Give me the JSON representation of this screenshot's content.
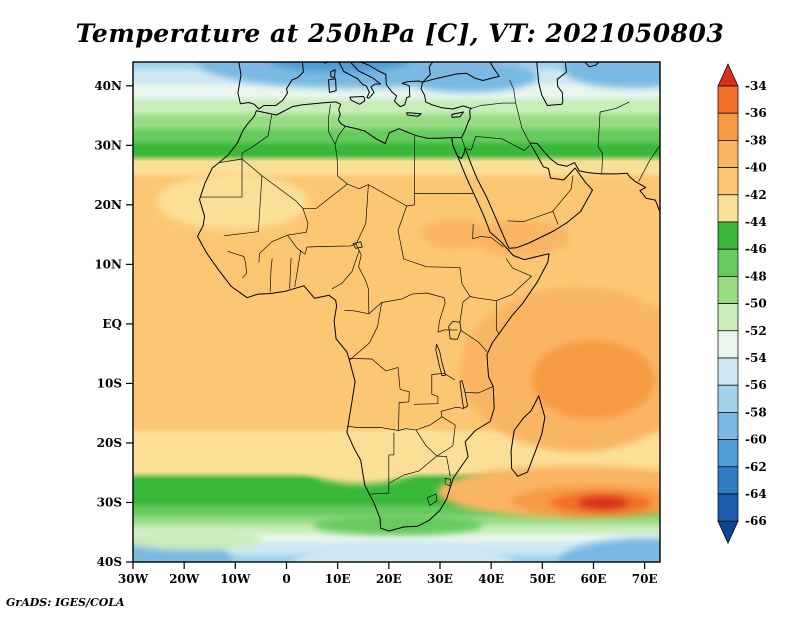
{
  "title": "Temperature at 250hPa [C], VT: 2021050803",
  "attribution": "GrADS: IGES/COLA",
  "chart_data": {
    "type": "heatmap",
    "title": "Temperature at 250hPa [C], VT: 2021050803",
    "variable": "Temperature",
    "level": "250hPa",
    "units": "C",
    "valid_time": "2021050803",
    "lon_range": [
      -30,
      73
    ],
    "lat_range": [
      -40,
      44
    ],
    "grid": false,
    "xticks": [
      {
        "value": -30,
        "label": "30W"
      },
      {
        "value": -20,
        "label": "20W"
      },
      {
        "value": -10,
        "label": "10W"
      },
      {
        "value": 0,
        "label": "0"
      },
      {
        "value": 10,
        "label": "10E"
      },
      {
        "value": 20,
        "label": "20E"
      },
      {
        "value": 30,
        "label": "30E"
      },
      {
        "value": 40,
        "label": "40E"
      },
      {
        "value": 50,
        "label": "50E"
      },
      {
        "value": 60,
        "label": "60E"
      },
      {
        "value": 70,
        "label": "70E"
      }
    ],
    "yticks": [
      {
        "value": 40,
        "label": "40N"
      },
      {
        "value": 30,
        "label": "30N"
      },
      {
        "value": 20,
        "label": "20N"
      },
      {
        "value": 10,
        "label": "10N"
      },
      {
        "value": 0,
        "label": "EQ"
      },
      {
        "value": -10,
        "label": "10S"
      },
      {
        "value": -20,
        "label": "20S"
      },
      {
        "value": -30,
        "label": "30S"
      },
      {
        "value": -40,
        "label": "40S"
      }
    ],
    "colorbar": {
      "orientation": "vertical-right",
      "levels": [
        -34,
        -36,
        -38,
        -40,
        -42,
        -44,
        -46,
        -48,
        -50,
        -52,
        -54,
        -56,
        -58,
        -60,
        -62,
        -64,
        -66
      ],
      "colors_warm_to_cold": [
        "#d8301c",
        "#f3702a",
        "#f89b45",
        "#fab563",
        "#fbc772",
        "#fbdf97",
        "#3ab83a",
        "#66ca5e",
        "#99dc86",
        "#c8ecba",
        "#e8f6ee",
        "#cfe7f3",
        "#a3d2ec",
        "#79b9e2",
        "#4f9bd5",
        "#2f7ec2",
        "#1a5dab",
        "#0c4394"
      ]
    },
    "zonal_profile": [
      {
        "lat": 44,
        "t": -57
      },
      {
        "lat": 41.5,
        "t": -55
      },
      {
        "lat": 39,
        "t": -53
      },
      {
        "lat": 36.5,
        "t": -51
      },
      {
        "lat": 34,
        "t": -49
      },
      {
        "lat": 31.5,
        "t": -47
      },
      {
        "lat": 29.2,
        "t": -45.2
      },
      {
        "lat": 26.5,
        "t": -43.2
      },
      {
        "lat": 23.5,
        "t": -41.5
      },
      {
        "lat": 20,
        "t": -41
      },
      {
        "lat": 10,
        "t": -40.7
      },
      {
        "lat": 0,
        "t": -40.8
      },
      {
        "lat": -10,
        "t": -41
      },
      {
        "lat": -16,
        "t": -41.5
      },
      {
        "lat": -20,
        "t": -42.6
      },
      {
        "lat": -24,
        "t": -43.4
      },
      {
        "lat": -27,
        "t": -44.6
      },
      {
        "lat": -29.5,
        "t": -45.4
      },
      {
        "lat": -31.5,
        "t": -47
      },
      {
        "lat": -33,
        "t": -49
      },
      {
        "lat": -34.5,
        "t": -51
      },
      {
        "lat": -36,
        "t": -53
      },
      {
        "lat": -37.5,
        "t": -55
      },
      {
        "lat": -40,
        "t": -56.5
      }
    ],
    "features": [
      {
        "name": "europe-cold-pool",
        "lon": 12,
        "lat": 44,
        "rx_deg": 29.3,
        "ry_deg": 4.4,
        "t": -59
      },
      {
        "name": "europe-cold-core",
        "lon": 10.5,
        "lat": 44.3,
        "rx_deg": 13.7,
        "ry_deg": 2.0,
        "t": -61.5
      },
      {
        "name": "anatolia-cold",
        "lon": 35.4,
        "lat": 41.6,
        "rx_deg": 13.7,
        "ry_deg": 2.7,
        "t": -58.5
      },
      {
        "name": "caspian-cold",
        "lon": 67.7,
        "lat": 43,
        "rx_deg": 13.7,
        "ry_deg": 3.4,
        "t": -58.5
      },
      {
        "name": "w-indian-ocean-warm",
        "lon": 57,
        "lat": -7.7,
        "rx_deg": 23.1,
        "ry_deg": 13.8,
        "t": -39.2
      },
      {
        "name": "w-indian-warm-core",
        "lon": 59.9,
        "lat": -9.4,
        "rx_deg": 12.1,
        "ry_deg": 6.7,
        "t": -37.6
      },
      {
        "name": "yemen-warm-patch",
        "lon": 45.8,
        "lat": 14.4,
        "rx_deg": 9.4,
        "ry_deg": 3.0,
        "t": -39.4
      },
      {
        "name": "sudan-warm-patch",
        "lon": 32.9,
        "lat": 15.1,
        "rx_deg": 6.6,
        "ry_deg": 2.4,
        "t": -39.6
      },
      {
        "name": "nw-africa-pale-band",
        "lon": -10.5,
        "lat": 20.5,
        "rx_deg": 14.7,
        "ry_deg": 4.7,
        "t": -42.6
      },
      {
        "name": "namibia-pale-patch",
        "lon": 14.6,
        "lat": -22.5,
        "rx_deg": 12.7,
        "ry_deg": 4.4,
        "t": -42.6
      },
      {
        "name": "kalahari-pale-patch",
        "lon": 24.3,
        "lat": -21.2,
        "rx_deg": 9.8,
        "ry_deg": 3.4,
        "t": -42.4
      },
      {
        "name": "se-indian-warm-band",
        "lon": 57,
        "lat": -28.2,
        "rx_deg": 27.4,
        "ry_deg": 4.4,
        "t": -38.6
      },
      {
        "name": "se-indian-warm-inner",
        "lon": 60.3,
        "lat": -29.8,
        "rx_deg": 16.6,
        "ry_deg": 2.7,
        "t": -37
      },
      {
        "name": "se-indian-hot-streak",
        "lon": 61.5,
        "lat": -30.1,
        "rx_deg": 10,
        "ry_deg": 1.9,
        "t": -35.4
      },
      {
        "name": "se-indian-hot-core",
        "lon": 61.9,
        "lat": -30.1,
        "rx_deg": 5,
        "ry_deg": 1.2,
        "t": -33.5
      },
      {
        "name": "sw-corner-cold",
        "lon": -27.1,
        "lat": -39.7,
        "rx_deg": 16.6,
        "ry_deg": 3.7,
        "t": -58.5
      },
      {
        "name": "se-corner-cold",
        "lon": 70.7,
        "lat": -40,
        "rx_deg": 17.6,
        "ry_deg": 4.0,
        "t": -58.5
      },
      {
        "name": "cape-south-cold-dip",
        "lon": 22.8,
        "lat": -40.3,
        "rx_deg": 21.5,
        "ry_deg": 3.4,
        "t": -55.5
      },
      {
        "name": "sw-green-streak",
        "lon": -18.3,
        "lat": -36.3,
        "rx_deg": 13.7,
        "ry_deg": 1.7,
        "t": -51.5
      },
      {
        "name": "cape-coast-green",
        "lon": 21.8,
        "lat": -33.8,
        "rx_deg": 16.6,
        "ry_deg": 1.7,
        "t": -46.5
      }
    ]
  }
}
